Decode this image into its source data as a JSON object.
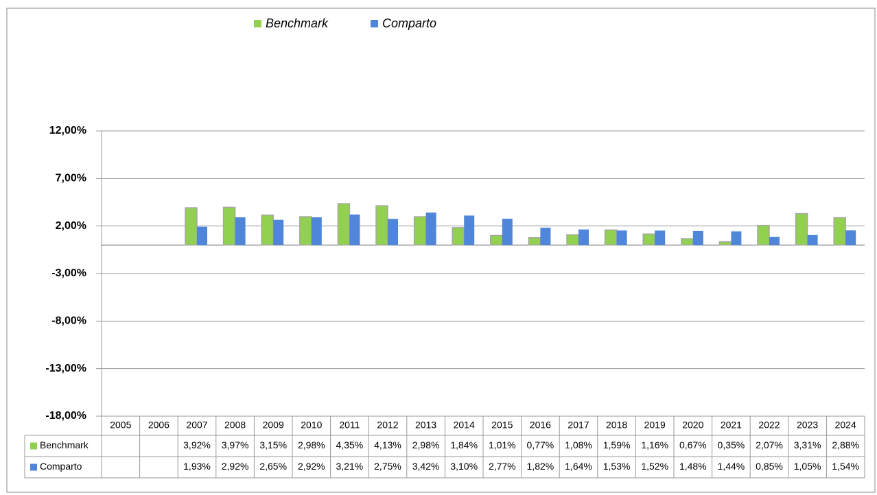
{
  "chart_data": {
    "type": "bar",
    "categories": [
      "2005",
      "2006",
      "2007",
      "2008",
      "2009",
      "2010",
      "2011",
      "2012",
      "2013",
      "2014",
      "2015",
      "2016",
      "2017",
      "2018",
      "2019",
      "2020",
      "2021",
      "2022",
      "2023",
      "2024"
    ],
    "series": [
      {
        "name": "Benchmark",
        "color": "#92d050",
        "values": [
          null,
          null,
          3.92,
          3.97,
          3.15,
          2.98,
          4.35,
          4.13,
          2.98,
          1.84,
          1.01,
          0.77,
          1.08,
          1.59,
          1.16,
          0.67,
          0.35,
          2.07,
          3.31,
          2.88
        ],
        "value_labels": [
          null,
          null,
          "3,92%",
          "3,97%",
          "3,15%",
          "2,98%",
          "4,35%",
          "4,13%",
          "2,98%",
          "1,84%",
          "1,01%",
          "0,77%",
          "1,08%",
          "1,59%",
          "1,16%",
          "0,67%",
          "0,35%",
          "2,07%",
          "3,31%",
          "2,88%"
        ]
      },
      {
        "name": "Comparto",
        "color": "#4f86d9",
        "values": [
          null,
          null,
          1.93,
          2.92,
          2.65,
          2.92,
          3.21,
          2.75,
          3.42,
          3.1,
          2.77,
          1.82,
          1.64,
          1.53,
          1.52,
          1.48,
          1.44,
          0.85,
          1.05,
          1.54
        ],
        "value_labels": [
          null,
          null,
          "1,93%",
          "2,92%",
          "2,65%",
          "2,92%",
          "3,21%",
          "2,75%",
          "3,42%",
          "3,10%",
          "2,77%",
          "1,82%",
          "1,64%",
          "1,53%",
          "1,52%",
          "1,48%",
          "1,44%",
          "0,85%",
          "1,05%",
          "1,54%"
        ]
      }
    ],
    "ylim": [
      -18,
      12
    ],
    "yticks": [
      {
        "value": -18,
        "label": "-18,00%"
      },
      {
        "value": -13,
        "label": "-13,00%"
      },
      {
        "value": -8,
        "label": "-8,00%"
      },
      {
        "value": -3,
        "label": "-3,00%"
      },
      {
        "value": 2,
        "label": "2,00%"
      },
      {
        "value": 7,
        "label": "7,00%"
      },
      {
        "value": 12,
        "label": "12,00%"
      }
    ],
    "grid": true,
    "legend": "top"
  }
}
